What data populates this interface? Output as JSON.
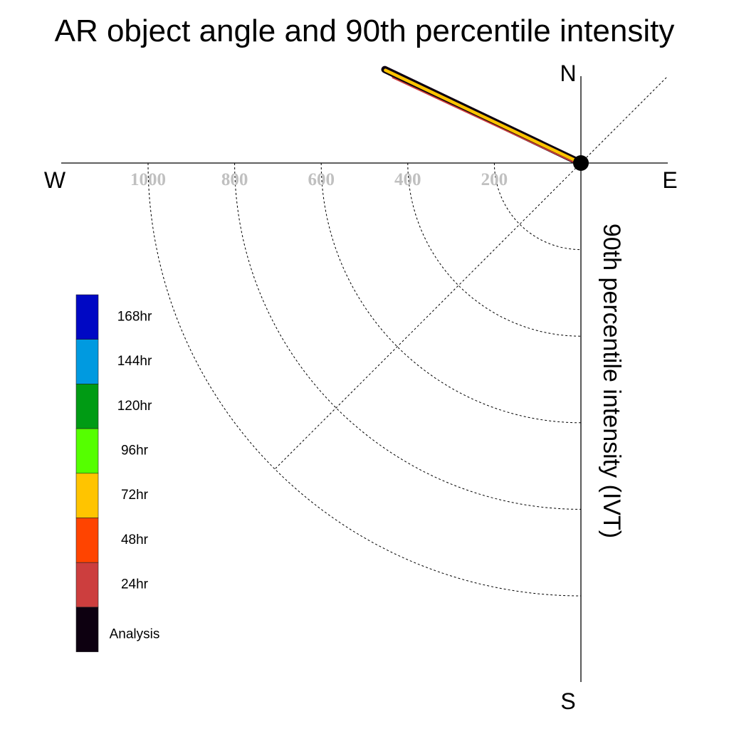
{
  "title": "AR object angle and 90th percentile intensity",
  "compass": {
    "north": "N",
    "south": "S",
    "east": "E",
    "west": "W"
  },
  "radial_axis_label": "90th percentile intensity (IVT)",
  "colors": {
    "analysis": "#0d0010",
    "24hr": "#cc3e3e",
    "48hr": "#ff4400",
    "72hr": "#ffc400",
    "96hr": "#55ff00",
    "120hr": "#009b14",
    "144hr": "#009ae0",
    "168hr": "#0008c4"
  },
  "chart_data": {
    "type": "polar-vector",
    "title": "AR object angle and 90th percentile intensity",
    "radial_label": "90th percentile intensity (IVT)",
    "radial_ticks": [
      200,
      400,
      600,
      800,
      1000
    ],
    "radial_tick_labels": [
      "200",
      "400",
      "600",
      "800",
      "1000"
    ],
    "radial_max": 1200,
    "direction_labels": [
      "N",
      "E",
      "S",
      "W"
    ],
    "grid": "dashed quarter circles in south-west quadrant, diagonal dashed line NE–SW",
    "legend_position": "left",
    "legend": [
      "168hr",
      "144hr",
      "120hr",
      "96hr",
      "72hr",
      "48hr",
      "24hr",
      "Analysis"
    ],
    "series": [
      {
        "name": "Analysis",
        "angle_deg": 295.5,
        "intensity": 502,
        "color": "#0d0010"
      },
      {
        "name": "72hr",
        "angle_deg": 295.4,
        "intensity": 500,
        "color": "#ffc400"
      },
      {
        "name": "24hr",
        "angle_deg": 295.0,
        "intensity": 478,
        "color": "#cc3e3e"
      }
    ]
  }
}
